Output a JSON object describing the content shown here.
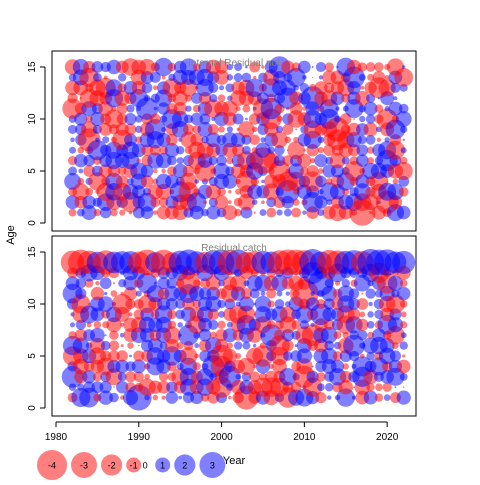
{
  "chart_data": [
    {
      "type": "scatter",
      "subtype": "bubble",
      "title": "Internal Residual pot",
      "xlabel": "Year",
      "ylabel": "Age",
      "xlim": [
        1980,
        2023
      ],
      "ylim": [
        0,
        15
      ],
      "x_ticks": [
        "1980",
        "1990",
        "2000",
        "2010",
        "2020"
      ],
      "y_ticks": [
        "0",
        "5",
        "10",
        "15"
      ],
      "grid": false,
      "years": [
        1982,
        2022
      ],
      "ages": [
        1,
        15
      ],
      "sign_colors": {
        "negative": "#ff0000",
        "positive": "#0000ff"
      },
      "values": "residual by year and age, read per bubble area; signs mixed across all cells"
    },
    {
      "type": "scatter",
      "subtype": "bubble",
      "title": "Residual catch",
      "xlabel": "Year",
      "ylabel": "Age",
      "xlim": [
        1980,
        2023
      ],
      "ylim": [
        0,
        15
      ],
      "x_ticks": [
        "1980",
        "1990",
        "2000",
        "2010",
        "2020"
      ],
      "y_ticks": [
        "0",
        "5",
        "10",
        "15"
      ],
      "grid": false,
      "years": [
        1982,
        2022
      ],
      "ages": [
        1,
        14
      ],
      "sign_colors": {
        "negative": "#ff0000",
        "positive": "#0000ff"
      },
      "values": "residual by year and age, read per bubble area; age 14 row has the largest residuals"
    }
  ],
  "legend": {
    "placement": "bottom-left",
    "entries": [
      "-4",
      "-3",
      "-2",
      "-1",
      "0",
      "1",
      "2",
      "3"
    ],
    "values": [
      -4,
      -3,
      -2,
      -1,
      0,
      1,
      2,
      3
    ]
  },
  "colors": {
    "negative": "#ff0000",
    "positive": "#0000ff",
    "axis": "#000000",
    "title": "#808080"
  },
  "shared_xlabel": "Year",
  "shared_ylabel": "Age"
}
